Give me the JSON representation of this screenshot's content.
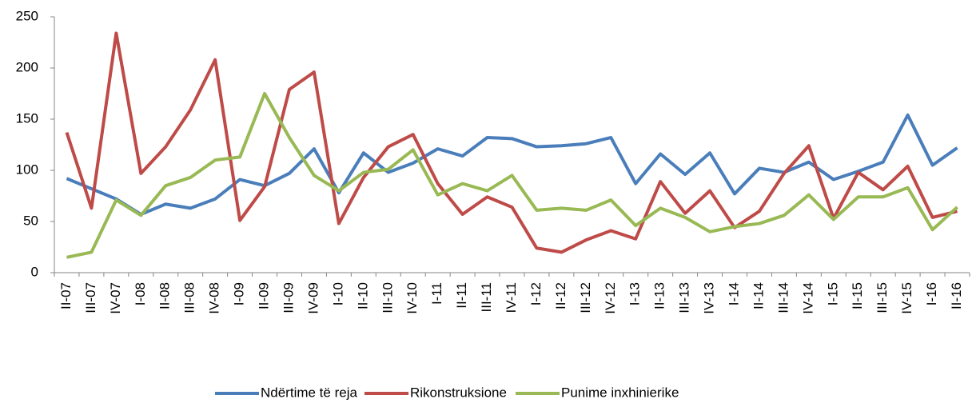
{
  "chart_data": {
    "type": "line",
    "categories": [
      "II-07",
      "III-07",
      "IV-07",
      "I-08",
      "II-08",
      "III-08",
      "IV-08",
      "I-09",
      "II-09",
      "III-09",
      "IV-09",
      "I-10",
      "II-10",
      "III-10",
      "IV-10",
      "I-11",
      "II-11",
      "III-11",
      "IV-11",
      "I-12",
      "II-12",
      "III-12",
      "IV-12",
      "I-13",
      "II-13",
      "III-13",
      "IV-13",
      "I-14",
      "II-14",
      "III-14",
      "IV-14",
      "I-15",
      "II-15",
      "III-15",
      "IV-15",
      "I-16",
      "II-16"
    ],
    "series": [
      {
        "name": "Ndërtime të reja",
        "color": "#4a7ebb",
        "values": [
          92,
          82,
          72,
          57,
          67,
          63,
          72,
          91,
          85,
          97,
          121,
          78,
          117,
          98,
          107,
          121,
          114,
          132,
          131,
          123,
          124,
          126,
          132,
          87,
          116,
          96,
          117,
          77,
          102,
          98,
          108,
          91,
          99,
          108,
          154,
          105,
          122
        ]
      },
      {
        "name": "Rikonstruksione",
        "color": "#be4b48",
        "values": [
          137,
          63,
          234,
          97,
          123,
          159,
          208,
          51,
          84,
          179,
          196,
          48,
          93,
          123,
          135,
          87,
          57,
          74,
          64,
          24,
          20,
          32,
          41,
          33,
          89,
          58,
          80,
          44,
          60,
          97,
          124,
          53,
          98,
          81,
          104,
          54,
          60
        ]
      },
      {
        "name": "Punime inxhinierike",
        "color": "#98b954",
        "values": [
          15,
          20,
          71,
          56,
          85,
          93,
          110,
          113,
          175,
          132,
          95,
          80,
          98,
          101,
          120,
          76,
          87,
          80,
          95,
          61,
          63,
          61,
          71,
          46,
          63,
          54,
          40,
          45,
          48,
          56,
          76,
          52,
          74,
          74,
          83,
          42,
          64
        ]
      }
    ],
    "ylim": [
      0,
      250
    ],
    "yticks": [
      0,
      50,
      100,
      150,
      200,
      250
    ],
    "grid": false,
    "legend": "bottom"
  }
}
